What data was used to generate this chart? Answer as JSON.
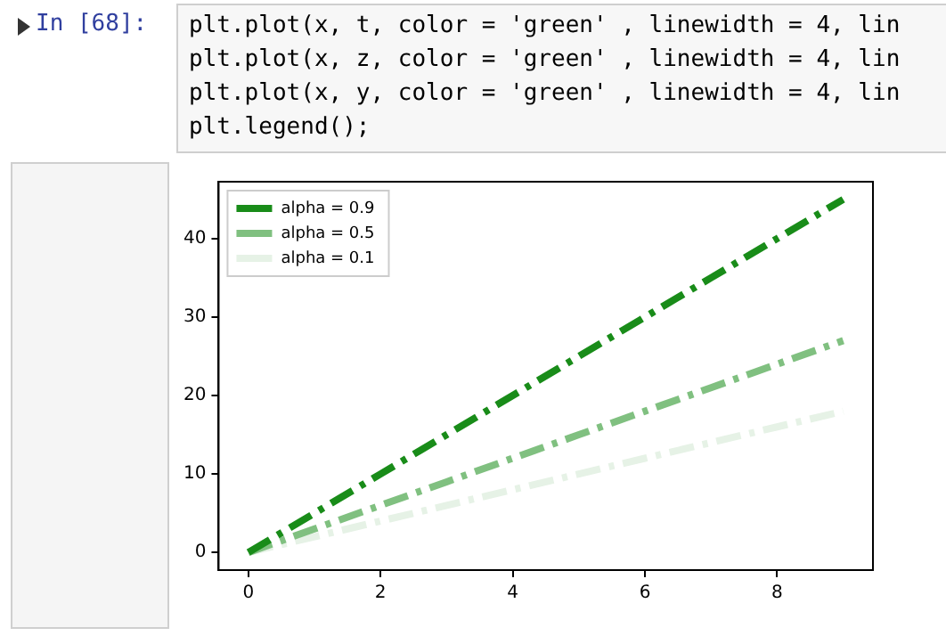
{
  "chart_data": {
    "type": "line",
    "annotations": [
      "In [68]:",
      "plt.plot(x, t, color = 'green' , linewidth = 4, lin",
      "plt.plot(x, z, color = 'green' , linewidth = 4, lin",
      "plt.plot(x, y, color = 'green' , linewidth = 4, lin",
      "plt.legend();"
    ],
    "x": [
      0,
      1,
      2,
      3,
      4,
      5,
      6,
      7,
      8,
      9
    ],
    "series": [
      {
        "name": "alpha = 0.9",
        "color": "#198c19",
        "values": [
          0,
          5,
          10,
          15,
          20,
          25,
          30,
          35,
          40,
          45
        ]
      },
      {
        "name": "alpha = 0.5",
        "color": "#80c080",
        "values": [
          0,
          3,
          6,
          9,
          12,
          15,
          18,
          21,
          24,
          27
        ]
      },
      {
        "name": "alpha = 0.1",
        "color": "#e6f2e6",
        "values": [
          0,
          2,
          4,
          6,
          8,
          10,
          12,
          14,
          16,
          18
        ]
      }
    ],
    "xlim": [
      -0.45,
      9.45
    ],
    "ylim": [
      -2.25,
      47.25
    ],
    "xticks": [
      0,
      2,
      4,
      6,
      8
    ],
    "yticks": [
      0,
      10,
      20,
      30,
      40
    ],
    "grid": false,
    "legend": "top left",
    "marker": "none",
    "line_style": "dashed"
  }
}
